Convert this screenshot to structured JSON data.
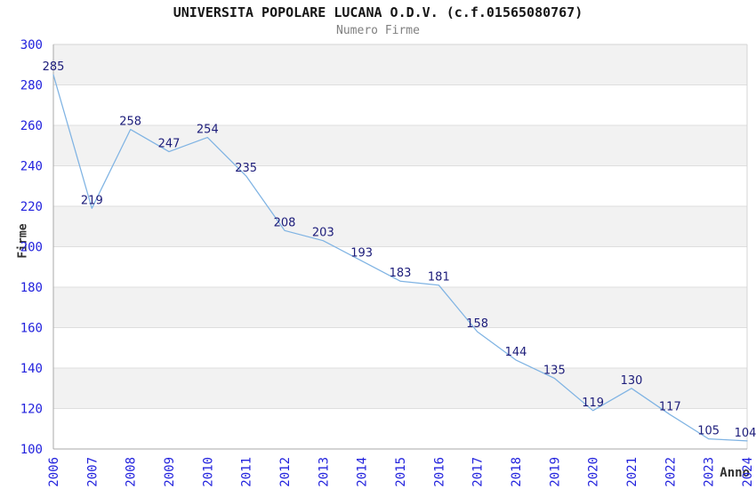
{
  "chart_data": {
    "type": "line",
    "title": "UNIVERSITA POPOLARE LUCANA O.D.V. (c.f.01565080767)",
    "subtitle": "Numero Firme",
    "xlabel": "Anno",
    "ylabel": "Firme",
    "x": [
      "2006",
      "2007",
      "2008",
      "2009",
      "2010",
      "2011",
      "2012",
      "2013",
      "2014",
      "2015",
      "2016",
      "2017",
      "2018",
      "2019",
      "2020",
      "2021",
      "2022",
      "2023",
      "2024"
    ],
    "series": [
      {
        "name": "Numero Firme",
        "values": [
          285,
          219,
          258,
          247,
          254,
          235,
          208,
          203,
          193,
          183,
          181,
          158,
          144,
          135,
          119,
          130,
          117,
          105,
          104
        ]
      }
    ],
    "ylim": [
      100,
      300
    ],
    "ytick_step": 20,
    "grid": "horizontal",
    "banded_background": true,
    "show_data_labels": true,
    "legend_position": "none",
    "colors": {
      "line": "#7fb3e3",
      "data_label": "#1c1c7a",
      "tick_label": "#2222dd",
      "band_gray": "#f2f2f2",
      "grid_line": "#dedede",
      "frame_line": "#d4d4d4",
      "axis_line": "#a8a8a8",
      "title": "#161616",
      "subtitle": "#808080",
      "axis_title": "#303030",
      "background": "#ffffff"
    }
  }
}
